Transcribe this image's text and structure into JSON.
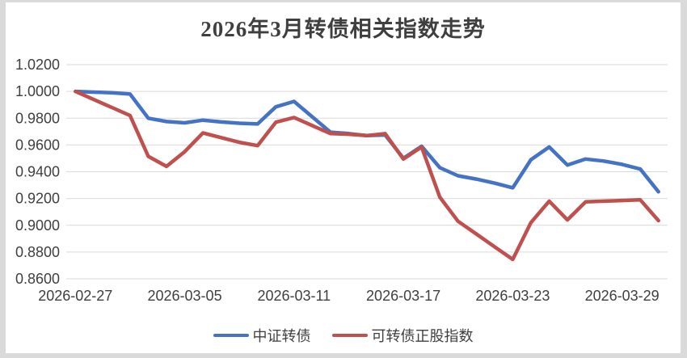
{
  "page": {
    "background_color": "#ffffff",
    "frame_color": "#dadada",
    "gridline_color": "#d9d9d9",
    "text_color": "#3f3f3f"
  },
  "chart_data": {
    "type": "line",
    "title": "2026年3月转债相关指数走势",
    "xlabel": "",
    "ylabel": "",
    "grid": true,
    "legend_position": "bottom",
    "ylim": [
      0.86,
      1.02
    ],
    "y_tick_step": 0.02,
    "y_tick_labels": [
      "1.0200",
      "1.0000",
      "0.9800",
      "0.9600",
      "0.9400",
      "0.9200",
      "0.9000",
      "0.8800",
      "0.8600"
    ],
    "x_tick_indices": [
      0,
      6,
      12,
      18,
      24,
      30
    ],
    "x_tick_labels": [
      "2026-02-27",
      "2026-03-05",
      "2026-03-11",
      "2026-03-17",
      "2026-03-23",
      "2026-03-29"
    ],
    "x": [
      "2026-02-27",
      "2026-02-28",
      "2026-03-01",
      "2026-03-02",
      "2026-03-03",
      "2026-03-04",
      "2026-03-05",
      "2026-03-06",
      "2026-03-07",
      "2026-03-08",
      "2026-03-09",
      "2026-03-10",
      "2026-03-11",
      "2026-03-12",
      "2026-03-13",
      "2026-03-14",
      "2026-03-15",
      "2026-03-16",
      "2026-03-17",
      "2026-03-18",
      "2026-03-19",
      "2026-03-20",
      "2026-03-21",
      "2026-03-22",
      "2026-03-23",
      "2026-03-24",
      "2026-03-25",
      "2026-03-26",
      "2026-03-27",
      "2026-03-28",
      "2026-03-29",
      "2026-03-30",
      "2026-03-31"
    ],
    "series": [
      {
        "name": "中证转债",
        "color": "#4472C4",
        "values": [
          1.0,
          0.9995,
          0.999,
          0.998,
          0.98,
          0.9775,
          0.9765,
          0.9785,
          0.9772,
          0.9762,
          0.9757,
          0.9885,
          0.9925,
          0.981,
          0.9695,
          0.9685,
          0.967,
          0.9675,
          0.95,
          0.959,
          0.943,
          0.937,
          0.9345,
          0.9315,
          0.928,
          0.949,
          0.9585,
          0.945,
          0.9495,
          0.948,
          0.9455,
          0.942,
          0.925
        ]
      },
      {
        "name": "可转债正股指数",
        "color": "#C0504D",
        "values": [
          1.0,
          0.994,
          0.988,
          0.982,
          0.9515,
          0.944,
          0.955,
          0.969,
          0.9655,
          0.962,
          0.9595,
          0.977,
          0.9805,
          0.9745,
          0.9685,
          0.968,
          0.967,
          0.9685,
          0.9495,
          0.9585,
          0.921,
          0.903,
          0.8935,
          0.884,
          0.8745,
          0.902,
          0.918,
          0.904,
          0.9175,
          0.918,
          0.9185,
          0.919,
          0.9035
        ]
      }
    ]
  }
}
